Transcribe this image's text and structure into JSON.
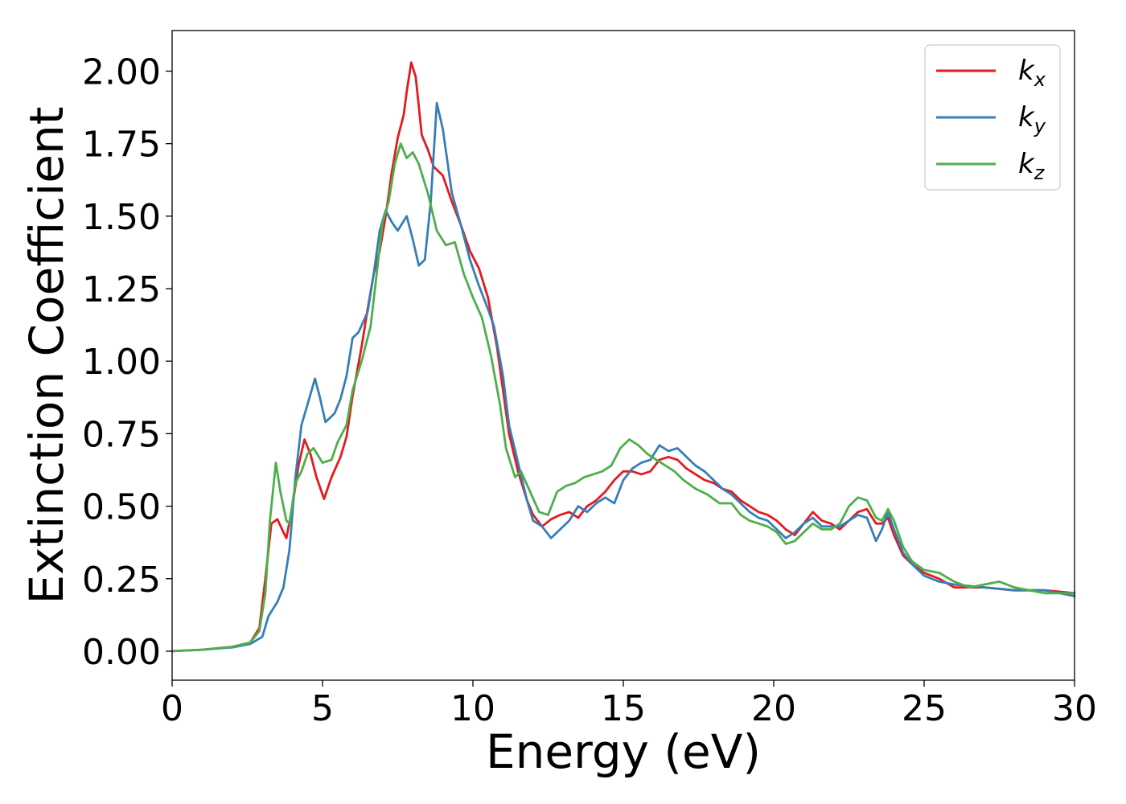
{
  "chart_data": {
    "type": "line",
    "xlabel": "Energy (eV)",
    "ylabel": "Extinction Coefficient",
    "xlim": [
      0,
      30
    ],
    "ylim": [
      -0.1,
      2.14
    ],
    "xticks": [
      0,
      5,
      10,
      15,
      20,
      25,
      30
    ],
    "xtick_labels": [
      "0",
      "5",
      "10",
      "15",
      "20",
      "25",
      "30"
    ],
    "yticks": [
      0.0,
      0.25,
      0.5,
      0.75,
      1.0,
      1.25,
      1.5,
      1.75,
      2.0
    ],
    "ytick_labels": [
      "0.00",
      "0.25",
      "0.50",
      "0.75",
      "1.00",
      "1.25",
      "1.50",
      "1.75",
      "2.00"
    ],
    "grid": false,
    "legend_position": "top-right",
    "series": [
      {
        "name": "k",
        "subscript": "x",
        "color": "#e41a1c",
        "points": [
          [
            0,
            0.0
          ],
          [
            1,
            0.005
          ],
          [
            2,
            0.015
          ],
          [
            2.6,
            0.03
          ],
          [
            2.9,
            0.08
          ],
          [
            3.1,
            0.25
          ],
          [
            3.3,
            0.44
          ],
          [
            3.5,
            0.455
          ],
          [
            3.7,
            0.41
          ],
          [
            3.8,
            0.39
          ],
          [
            4.0,
            0.5
          ],
          [
            4.2,
            0.64
          ],
          [
            4.4,
            0.73
          ],
          [
            4.6,
            0.68
          ],
          [
            4.8,
            0.6
          ],
          [
            5.05,
            0.525
          ],
          [
            5.3,
            0.6
          ],
          [
            5.6,
            0.67
          ],
          [
            5.8,
            0.74
          ],
          [
            6.0,
            0.88
          ],
          [
            6.3,
            1.05
          ],
          [
            6.5,
            1.18
          ],
          [
            6.7,
            1.3
          ],
          [
            6.9,
            1.38
          ],
          [
            7.1,
            1.5
          ],
          [
            7.3,
            1.65
          ],
          [
            7.5,
            1.77
          ],
          [
            7.7,
            1.85
          ],
          [
            7.8,
            1.93
          ],
          [
            7.95,
            2.03
          ],
          [
            8.1,
            1.98
          ],
          [
            8.3,
            1.78
          ],
          [
            8.5,
            1.73
          ],
          [
            8.7,
            1.67
          ],
          [
            9.0,
            1.64
          ],
          [
            9.3,
            1.55
          ],
          [
            9.6,
            1.47
          ],
          [
            9.9,
            1.38
          ],
          [
            10.2,
            1.32
          ],
          [
            10.5,
            1.22
          ],
          [
            10.8,
            1.05
          ],
          [
            11.0,
            0.9
          ],
          [
            11.2,
            0.75
          ],
          [
            11.5,
            0.62
          ],
          [
            11.8,
            0.52
          ],
          [
            12.0,
            0.47
          ],
          [
            12.3,
            0.43
          ],
          [
            12.6,
            0.455
          ],
          [
            12.9,
            0.47
          ],
          [
            13.2,
            0.48
          ],
          [
            13.5,
            0.46
          ],
          [
            13.8,
            0.5
          ],
          [
            14.1,
            0.52
          ],
          [
            14.4,
            0.55
          ],
          [
            14.7,
            0.59
          ],
          [
            15.0,
            0.62
          ],
          [
            15.3,
            0.62
          ],
          [
            15.6,
            0.61
          ],
          [
            15.9,
            0.62
          ],
          [
            16.2,
            0.66
          ],
          [
            16.5,
            0.67
          ],
          [
            16.8,
            0.66
          ],
          [
            17.1,
            0.63
          ],
          [
            17.4,
            0.61
          ],
          [
            17.7,
            0.59
          ],
          [
            18.0,
            0.58
          ],
          [
            18.3,
            0.56
          ],
          [
            18.6,
            0.55
          ],
          [
            18.9,
            0.52
          ],
          [
            19.2,
            0.5
          ],
          [
            19.5,
            0.48
          ],
          [
            19.8,
            0.47
          ],
          [
            20.1,
            0.45
          ],
          [
            20.4,
            0.42
          ],
          [
            20.7,
            0.4
          ],
          [
            21.0,
            0.44
          ],
          [
            21.3,
            0.48
          ],
          [
            21.6,
            0.45
          ],
          [
            21.9,
            0.44
          ],
          [
            22.2,
            0.42
          ],
          [
            22.5,
            0.45
          ],
          [
            22.8,
            0.48
          ],
          [
            23.1,
            0.49
          ],
          [
            23.4,
            0.44
          ],
          [
            23.6,
            0.44
          ],
          [
            23.8,
            0.46
          ],
          [
            24.0,
            0.4
          ],
          [
            24.3,
            0.33
          ],
          [
            24.6,
            0.3
          ],
          [
            25.0,
            0.27
          ],
          [
            25.5,
            0.25
          ],
          [
            26.0,
            0.22
          ],
          [
            27.0,
            0.22
          ],
          [
            28.0,
            0.21
          ],
          [
            29.0,
            0.21
          ],
          [
            30.0,
            0.2
          ]
        ]
      },
      {
        "name": "k",
        "subscript": "y",
        "color": "#377eb8",
        "points": [
          [
            0,
            0.0
          ],
          [
            1,
            0.005
          ],
          [
            2,
            0.013
          ],
          [
            2.6,
            0.025
          ],
          [
            3.0,
            0.05
          ],
          [
            3.2,
            0.12
          ],
          [
            3.5,
            0.17
          ],
          [
            3.7,
            0.22
          ],
          [
            3.9,
            0.35
          ],
          [
            4.1,
            0.6
          ],
          [
            4.3,
            0.78
          ],
          [
            4.5,
            0.85
          ],
          [
            4.75,
            0.94
          ],
          [
            4.9,
            0.88
          ],
          [
            5.1,
            0.79
          ],
          [
            5.4,
            0.82
          ],
          [
            5.6,
            0.87
          ],
          [
            5.8,
            0.95
          ],
          [
            6.0,
            1.08
          ],
          [
            6.2,
            1.1
          ],
          [
            6.5,
            1.17
          ],
          [
            6.7,
            1.3
          ],
          [
            6.9,
            1.45
          ],
          [
            7.1,
            1.52
          ],
          [
            7.3,
            1.48
          ],
          [
            7.5,
            1.45
          ],
          [
            7.8,
            1.5
          ],
          [
            8.0,
            1.42
          ],
          [
            8.2,
            1.33
          ],
          [
            8.4,
            1.35
          ],
          [
            8.6,
            1.55
          ],
          [
            8.8,
            1.89
          ],
          [
            9.0,
            1.8
          ],
          [
            9.3,
            1.58
          ],
          [
            9.6,
            1.47
          ],
          [
            9.9,
            1.35
          ],
          [
            10.2,
            1.26
          ],
          [
            10.5,
            1.18
          ],
          [
            10.7,
            1.12
          ],
          [
            11.0,
            0.95
          ],
          [
            11.2,
            0.78
          ],
          [
            11.5,
            0.65
          ],
          [
            11.8,
            0.52
          ],
          [
            12.0,
            0.45
          ],
          [
            12.3,
            0.43
          ],
          [
            12.6,
            0.39
          ],
          [
            12.9,
            0.42
          ],
          [
            13.2,
            0.45
          ],
          [
            13.5,
            0.5
          ],
          [
            13.8,
            0.48
          ],
          [
            14.1,
            0.51
          ],
          [
            14.4,
            0.53
          ],
          [
            14.7,
            0.51
          ],
          [
            15.0,
            0.59
          ],
          [
            15.3,
            0.63
          ],
          [
            15.6,
            0.65
          ],
          [
            15.9,
            0.66
          ],
          [
            16.2,
            0.71
          ],
          [
            16.5,
            0.69
          ],
          [
            16.8,
            0.7
          ],
          [
            17.1,
            0.67
          ],
          [
            17.4,
            0.64
          ],
          [
            17.7,
            0.62
          ],
          [
            18.0,
            0.59
          ],
          [
            18.3,
            0.56
          ],
          [
            18.6,
            0.54
          ],
          [
            18.9,
            0.51
          ],
          [
            19.2,
            0.48
          ],
          [
            19.5,
            0.46
          ],
          [
            19.8,
            0.45
          ],
          [
            20.1,
            0.42
          ],
          [
            20.4,
            0.39
          ],
          [
            20.7,
            0.41
          ],
          [
            21.0,
            0.44
          ],
          [
            21.3,
            0.46
          ],
          [
            21.6,
            0.43
          ],
          [
            21.9,
            0.43
          ],
          [
            22.2,
            0.43
          ],
          [
            22.5,
            0.45
          ],
          [
            22.8,
            0.47
          ],
          [
            23.1,
            0.46
          ],
          [
            23.4,
            0.38
          ],
          [
            23.6,
            0.42
          ],
          [
            23.8,
            0.48
          ],
          [
            24.0,
            0.42
          ],
          [
            24.3,
            0.34
          ],
          [
            24.6,
            0.3
          ],
          [
            25.0,
            0.26
          ],
          [
            25.5,
            0.24
          ],
          [
            26.0,
            0.23
          ],
          [
            27.0,
            0.22
          ],
          [
            28.0,
            0.21
          ],
          [
            29.0,
            0.21
          ],
          [
            30.0,
            0.19
          ]
        ]
      },
      {
        "name": "k",
        "subscript": "z",
        "color": "#4daf4a",
        "points": [
          [
            0,
            0.0
          ],
          [
            1,
            0.005
          ],
          [
            2,
            0.015
          ],
          [
            2.6,
            0.03
          ],
          [
            2.9,
            0.07
          ],
          [
            3.1,
            0.2
          ],
          [
            3.25,
            0.45
          ],
          [
            3.45,
            0.65
          ],
          [
            3.6,
            0.55
          ],
          [
            3.8,
            0.45
          ],
          [
            3.9,
            0.44
          ],
          [
            4.1,
            0.58
          ],
          [
            4.3,
            0.62
          ],
          [
            4.5,
            0.68
          ],
          [
            4.7,
            0.7
          ],
          [
            5.0,
            0.65
          ],
          [
            5.3,
            0.66
          ],
          [
            5.5,
            0.72
          ],
          [
            5.8,
            0.78
          ],
          [
            6.0,
            0.9
          ],
          [
            6.3,
            1.0
          ],
          [
            6.6,
            1.12
          ],
          [
            6.8,
            1.3
          ],
          [
            7.0,
            1.48
          ],
          [
            7.2,
            1.55
          ],
          [
            7.4,
            1.68
          ],
          [
            7.6,
            1.75
          ],
          [
            7.8,
            1.7
          ],
          [
            8.0,
            1.72
          ],
          [
            8.2,
            1.68
          ],
          [
            8.5,
            1.58
          ],
          [
            8.8,
            1.45
          ],
          [
            9.1,
            1.4
          ],
          [
            9.4,
            1.41
          ],
          [
            9.7,
            1.3
          ],
          [
            10.0,
            1.22
          ],
          [
            10.3,
            1.15
          ],
          [
            10.6,
            1.02
          ],
          [
            10.9,
            0.85
          ],
          [
            11.1,
            0.7
          ],
          [
            11.4,
            0.6
          ],
          [
            11.6,
            0.62
          ],
          [
            11.9,
            0.55
          ],
          [
            12.2,
            0.48
          ],
          [
            12.5,
            0.47
          ],
          [
            12.8,
            0.55
          ],
          [
            13.1,
            0.57
          ],
          [
            13.4,
            0.58
          ],
          [
            13.7,
            0.6
          ],
          [
            14.0,
            0.61
          ],
          [
            14.3,
            0.62
          ],
          [
            14.6,
            0.64
          ],
          [
            14.9,
            0.7
          ],
          [
            15.2,
            0.73
          ],
          [
            15.5,
            0.71
          ],
          [
            15.8,
            0.68
          ],
          [
            16.1,
            0.66
          ],
          [
            16.4,
            0.64
          ],
          [
            16.7,
            0.62
          ],
          [
            17.0,
            0.59
          ],
          [
            17.4,
            0.56
          ],
          [
            17.8,
            0.54
          ],
          [
            18.2,
            0.51
          ],
          [
            18.6,
            0.51
          ],
          [
            18.9,
            0.47
          ],
          [
            19.2,
            0.45
          ],
          [
            19.5,
            0.44
          ],
          [
            19.8,
            0.43
          ],
          [
            20.1,
            0.41
          ],
          [
            20.4,
            0.37
          ],
          [
            20.7,
            0.38
          ],
          [
            21.0,
            0.41
          ],
          [
            21.3,
            0.44
          ],
          [
            21.6,
            0.42
          ],
          [
            21.9,
            0.42
          ],
          [
            22.2,
            0.44
          ],
          [
            22.5,
            0.5
          ],
          [
            22.8,
            0.53
          ],
          [
            23.1,
            0.52
          ],
          [
            23.4,
            0.46
          ],
          [
            23.6,
            0.45
          ],
          [
            23.8,
            0.49
          ],
          [
            24.0,
            0.45
          ],
          [
            24.3,
            0.36
          ],
          [
            24.6,
            0.31
          ],
          [
            25.0,
            0.28
          ],
          [
            25.5,
            0.27
          ],
          [
            26.0,
            0.24
          ],
          [
            26.5,
            0.22
          ],
          [
            27.5,
            0.24
          ],
          [
            28.0,
            0.22
          ],
          [
            29.0,
            0.2
          ],
          [
            30.0,
            0.2
          ]
        ]
      }
    ]
  }
}
